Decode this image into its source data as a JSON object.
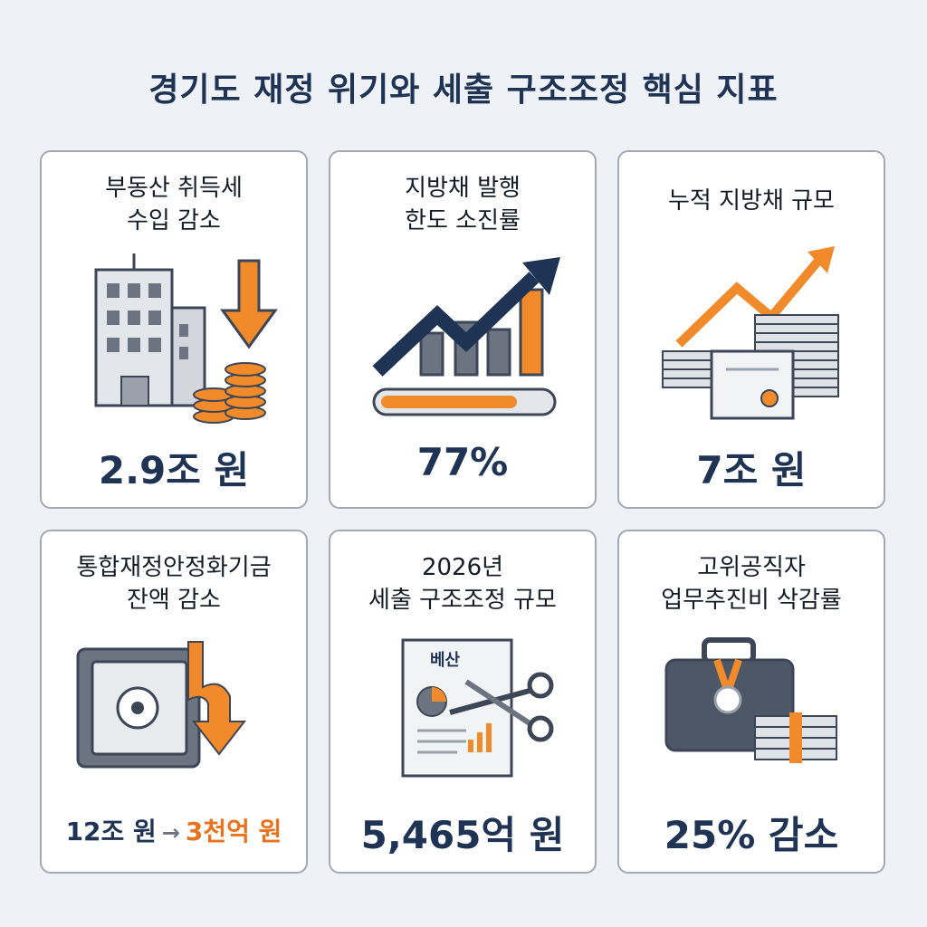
{
  "title": "경기도 재정 위기와 세출 구조조정 핵심 지표",
  "cards": [
    {
      "title": [
        "부동산 취득세",
        "수입 감소"
      ],
      "value": "2.9조 원"
    },
    {
      "title": [
        "지방채 발행",
        "한도 소진률"
      ],
      "value": "77%"
    },
    {
      "title": [
        "누적 지방채 규모"
      ],
      "value": "7조 원"
    },
    {
      "title": [
        "통합재정안정화기금",
        "잔액 감소"
      ],
      "value_parts": [
        "12조 원",
        "→",
        "3천억 원"
      ]
    },
    {
      "title": [
        "2026년",
        "세출 구조조정 규모"
      ],
      "icon_text": "베산",
      "value": "5,465억 원"
    },
    {
      "title": [
        "고위공직자",
        "업무추진비 삭감률"
      ],
      "value": "25% 감소"
    }
  ]
}
